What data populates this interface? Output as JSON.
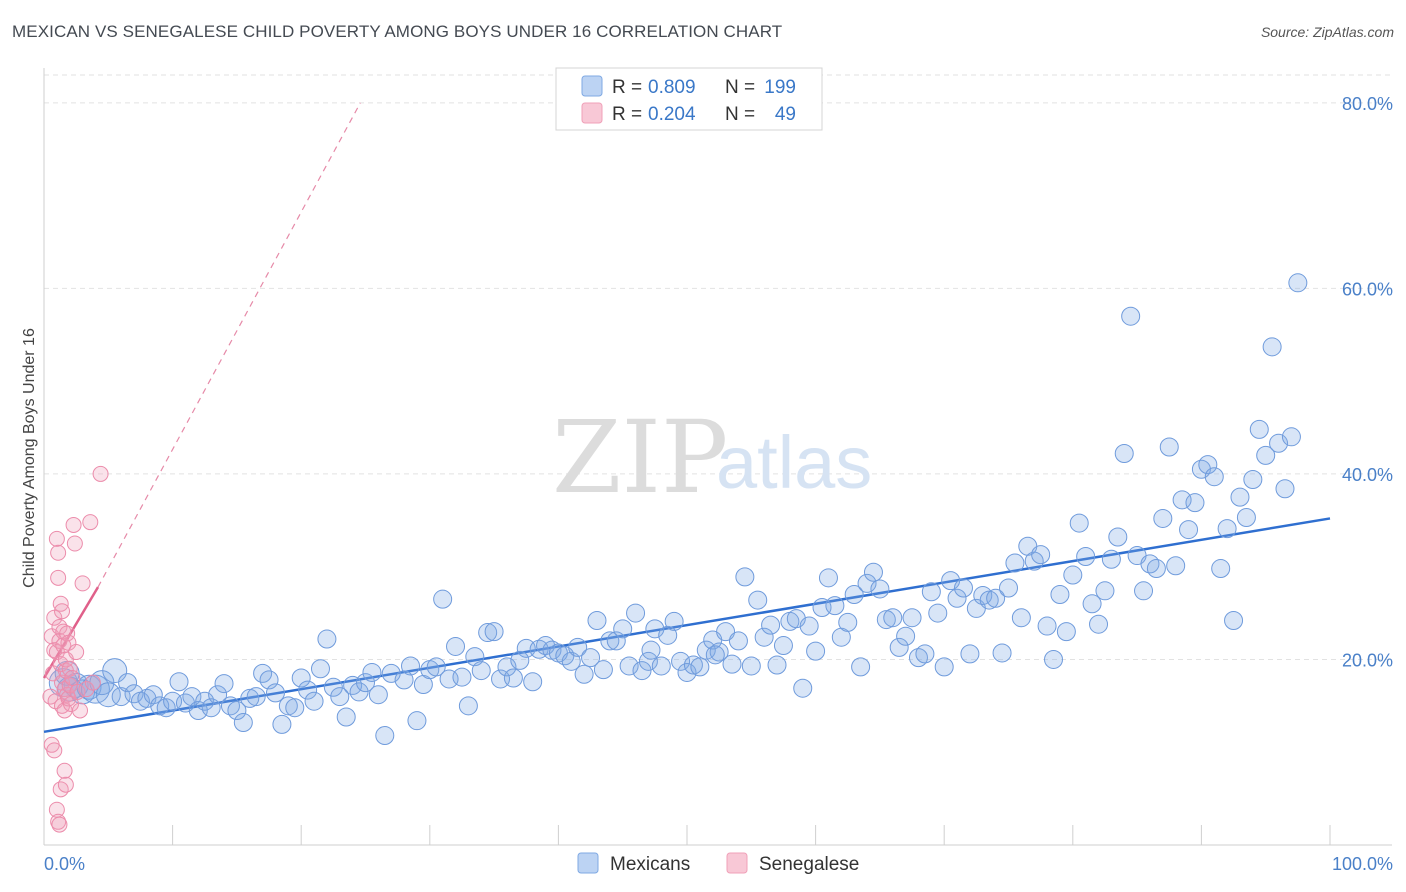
{
  "header": {
    "title": "MEXICAN VS SENEGALESE CHILD POVERTY AMONG BOYS UNDER 16 CORRELATION CHART",
    "source": "Source: ZipAtlas.com"
  },
  "watermark": {
    "zip": "ZIP",
    "atlas": "atlas"
  },
  "legend": {
    "r_label": "R =",
    "n_label": "N =",
    "rows": [
      {
        "r": "0.809",
        "n": "199",
        "color": "#7fa9e3"
      },
      {
        "r": "0.204",
        "n": "49",
        "color": "#f0a0b8"
      }
    ]
  },
  "chart_data": {
    "type": "scatter",
    "xlabel": "",
    "ylabel": "Child Poverty Among Boys Under 16",
    "xlim": [
      0,
      100
    ],
    "ylim": [
      0,
      83
    ],
    "x_tick_labels": [
      {
        "value": 0,
        "label": "0.0%"
      },
      {
        "value": 100,
        "label": "100.0%"
      }
    ],
    "y_tick_labels": [
      {
        "value": 20,
        "label": "20.0%"
      },
      {
        "value": 40,
        "label": "40.0%"
      },
      {
        "value": 60,
        "label": "60.0%"
      },
      {
        "value": 80,
        "label": "80.0%"
      }
    ],
    "grid": true,
    "legend_position": "top-center",
    "series": [
      {
        "name": "Mexicans",
        "color": "#7fa9e3",
        "trend": {
          "x": [
            0,
            100
          ],
          "y": [
            12.2,
            35.2
          ],
          "dashed_extension": false
        },
        "points": [
          [
            1.5,
            17.5
          ],
          [
            2,
            16.8
          ],
          [
            2.5,
            17.2
          ],
          [
            3,
            16.5
          ],
          [
            3.5,
            17.0
          ],
          [
            4,
            16.8
          ],
          [
            4.5,
            17.5
          ],
          [
            5,
            16.2
          ],
          [
            5.5,
            18.8
          ],
          [
            6,
            16.0
          ],
          [
            6.5,
            17.5
          ],
          [
            7,
            16.3
          ],
          [
            7.5,
            15.5
          ],
          [
            8,
            15.8
          ],
          [
            8.5,
            16.2
          ],
          [
            9,
            15.0
          ],
          [
            9.5,
            14.8
          ],
          [
            10,
            15.5
          ],
          [
            10.5,
            17.6
          ],
          [
            11,
            15.3
          ],
          [
            11.5,
            16.0
          ],
          [
            12,
            14.5
          ],
          [
            12.5,
            15.5
          ],
          [
            13,
            14.8
          ],
          [
            13.5,
            16.2
          ],
          [
            14,
            17.4
          ],
          [
            14.5,
            15.0
          ],
          [
            15,
            14.5
          ],
          [
            15.5,
            13.2
          ],
          [
            16,
            15.8
          ],
          [
            16.5,
            16.0
          ],
          [
            17,
            18.5
          ],
          [
            17.5,
            17.8
          ],
          [
            18,
            16.4
          ],
          [
            18.5,
            13.0
          ],
          [
            19,
            15.0
          ],
          [
            19.5,
            14.8
          ],
          [
            20,
            18.0
          ],
          [
            20.5,
            16.7
          ],
          [
            21,
            15.5
          ],
          [
            21.5,
            19.0
          ],
          [
            22,
            22.2
          ],
          [
            22.5,
            17.0
          ],
          [
            23,
            16.0
          ],
          [
            23.5,
            13.8
          ],
          [
            24,
            17.2
          ],
          [
            24.5,
            16.5
          ],
          [
            25,
            17.5
          ],
          [
            25.5,
            18.6
          ],
          [
            26,
            16.2
          ],
          [
            26.5,
            11.8
          ],
          [
            27,
            18.5
          ],
          [
            28,
            17.8
          ],
          [
            28.5,
            19.3
          ],
          [
            29,
            13.4
          ],
          [
            29.5,
            17.3
          ],
          [
            30,
            18.9
          ],
          [
            30.5,
            19.2
          ],
          [
            31,
            26.5
          ],
          [
            31.5,
            17.9
          ],
          [
            32,
            21.4
          ],
          [
            32.5,
            18.1
          ],
          [
            33,
            15.0
          ],
          [
            33.5,
            20.3
          ],
          [
            34,
            18.8
          ],
          [
            34.5,
            22.9
          ],
          [
            35,
            23.0
          ],
          [
            35.5,
            17.9
          ],
          [
            36,
            19.2
          ],
          [
            36.5,
            18.0
          ],
          [
            37,
            19.9
          ],
          [
            37.5,
            21.2
          ],
          [
            38,
            17.6
          ],
          [
            38.5,
            21.1
          ],
          [
            39,
            21.5
          ],
          [
            39.5,
            21.0
          ],
          [
            40,
            20.7
          ],
          [
            40.5,
            20.4
          ],
          [
            41,
            19.8
          ],
          [
            41.5,
            21.3
          ],
          [
            42,
            18.4
          ],
          [
            42.5,
            20.2
          ],
          [
            43,
            24.2
          ],
          [
            43.5,
            18.9
          ],
          [
            44,
            22.0
          ],
          [
            44.5,
            22.0
          ],
          [
            45,
            23.3
          ],
          [
            45.5,
            19.3
          ],
          [
            46,
            25.0
          ],
          [
            46.5,
            18.8
          ],
          [
            47,
            19.8
          ],
          [
            47.5,
            23.3
          ],
          [
            48,
            19.3
          ],
          [
            48.5,
            22.6
          ],
          [
            49,
            24.1
          ],
          [
            49.5,
            19.8
          ],
          [
            50,
            18.6
          ],
          [
            50.5,
            19.4
          ],
          [
            51,
            19.2
          ],
          [
            51.5,
            21.0
          ],
          [
            52,
            22.1
          ],
          [
            52.5,
            20.8
          ],
          [
            53,
            23.0
          ],
          [
            53.5,
            19.5
          ],
          [
            54,
            22.0
          ],
          [
            54.5,
            28.9
          ],
          [
            55,
            19.3
          ],
          [
            55.5,
            26.4
          ],
          [
            56,
            22.4
          ],
          [
            56.5,
            23.7
          ],
          [
            57,
            19.4
          ],
          [
            57.5,
            21.5
          ],
          [
            58,
            24.1
          ],
          [
            58.5,
            24.4
          ],
          [
            59,
            16.9
          ],
          [
            59.5,
            23.6
          ],
          [
            60,
            20.9
          ],
          [
            60.5,
            25.6
          ],
          [
            61,
            28.8
          ],
          [
            61.5,
            25.8
          ],
          [
            62,
            22.4
          ],
          [
            62.5,
            24.0
          ],
          [
            63,
            27.0
          ],
          [
            63.5,
            19.2
          ],
          [
            64,
            28.2
          ],
          [
            64.5,
            29.4
          ],
          [
            65,
            27.6
          ],
          [
            65.5,
            24.3
          ],
          [
            66,
            24.5
          ],
          [
            66.5,
            21.3
          ],
          [
            67,
            22.5
          ],
          [
            67.5,
            24.5
          ],
          [
            68,
            20.2
          ],
          [
            68.5,
            20.6
          ],
          [
            69,
            27.3
          ],
          [
            69.5,
            25.0
          ],
          [
            70,
            19.2
          ],
          [
            70.5,
            28.5
          ],
          [
            71,
            26.6
          ],
          [
            71.5,
            27.7
          ],
          [
            72,
            20.6
          ],
          [
            72.5,
            25.5
          ],
          [
            73,
            26.9
          ],
          [
            73.5,
            26.4
          ],
          [
            74,
            26.6
          ],
          [
            74.5,
            20.7
          ],
          [
            75,
            27.7
          ],
          [
            75.5,
            30.4
          ],
          [
            76,
            24.5
          ],
          [
            76.5,
            32.2
          ],
          [
            77,
            30.6
          ],
          [
            77.5,
            31.3
          ],
          [
            78,
            23.6
          ],
          [
            78.5,
            20.0
          ],
          [
            79,
            27.0
          ],
          [
            79.5,
            23.0
          ],
          [
            80,
            29.1
          ],
          [
            80.5,
            34.7
          ],
          [
            81,
            31.1
          ],
          [
            81.5,
            26.0
          ],
          [
            82,
            23.8
          ],
          [
            82.5,
            27.4
          ],
          [
            83,
            30.8
          ],
          [
            83.5,
            33.2
          ],
          [
            84,
            42.2
          ],
          [
            84.5,
            57.0
          ],
          [
            85,
            31.2
          ],
          [
            85.5,
            27.4
          ],
          [
            86,
            30.3
          ],
          [
            86.5,
            29.8
          ],
          [
            87,
            35.2
          ],
          [
            87.5,
            42.9
          ],
          [
            88,
            30.1
          ],
          [
            88.5,
            37.2
          ],
          [
            89,
            34.0
          ],
          [
            89.5,
            36.9
          ],
          [
            90,
            40.5
          ],
          [
            90.5,
            41.0
          ],
          [
            91,
            39.7
          ],
          [
            91.5,
            29.8
          ],
          [
            92,
            34.1
          ],
          [
            92.5,
            24.2
          ],
          [
            93,
            37.5
          ],
          [
            93.5,
            35.3
          ],
          [
            94,
            39.4
          ],
          [
            94.5,
            44.8
          ],
          [
            95,
            42.0
          ],
          [
            95.5,
            53.7
          ],
          [
            96,
            43.3
          ],
          [
            96.5,
            38.4
          ],
          [
            97,
            44.0
          ],
          [
            97.5,
            60.6
          ],
          [
            52.2,
            20.5
          ],
          [
            47.2,
            21.0
          ],
          [
            1.8,
            18.5
          ]
        ]
      },
      {
        "name": "Senegalese",
        "color": "#f0a0b8",
        "trend": {
          "x": [
            0,
            4.2
          ],
          "y": [
            18.0,
            27.8
          ],
          "dashed_extension": true,
          "dashed_to": [
            24.6,
            80
          ]
        },
        "points": [
          [
            0.5,
            16.0
          ],
          [
            0.6,
            22.5
          ],
          [
            0.7,
            18.5
          ],
          [
            0.8,
            24.5
          ],
          [
            0.8,
            21.0
          ],
          [
            0.9,
            15.5
          ],
          [
            1.0,
            20.8
          ],
          [
            1.0,
            33.0
          ],
          [
            1.1,
            31.5
          ],
          [
            1.1,
            28.8
          ],
          [
            1.2,
            23.5
          ],
          [
            1.2,
            22.0
          ],
          [
            1.3,
            26.0
          ],
          [
            1.3,
            19.5
          ],
          [
            1.4,
            17.5
          ],
          [
            1.4,
            15.0
          ],
          [
            1.5,
            21.5
          ],
          [
            1.5,
            23.0
          ],
          [
            1.6,
            16.8
          ],
          [
            1.6,
            14.5
          ],
          [
            1.7,
            18.8
          ],
          [
            1.7,
            20.0
          ],
          [
            1.8,
            16.2
          ],
          [
            1.8,
            22.8
          ],
          [
            1.9,
            15.8
          ],
          [
            1.9,
            21.8
          ],
          [
            2.0,
            17.2
          ],
          [
            2.0,
            19.0
          ],
          [
            2.1,
            15.2
          ],
          [
            2.2,
            18.0
          ],
          [
            2.3,
            34.5
          ],
          [
            2.4,
            32.5
          ],
          [
            2.5,
            20.8
          ],
          [
            2.6,
            16.5
          ],
          [
            2.8,
            14.5
          ],
          [
            3.0,
            28.2
          ],
          [
            3.3,
            16.8
          ],
          [
            3.6,
            34.8
          ],
          [
            3.8,
            17.5
          ],
          [
            4.4,
            40.0
          ],
          [
            0.6,
            10.8
          ],
          [
            0.8,
            10.2
          ],
          [
            1.0,
            3.8
          ],
          [
            1.1,
            2.5
          ],
          [
            1.2,
            2.2
          ],
          [
            1.3,
            6.0
          ],
          [
            1.6,
            8.0
          ],
          [
            1.7,
            6.5
          ],
          [
            1.4,
            25.2
          ]
        ]
      }
    ]
  }
}
